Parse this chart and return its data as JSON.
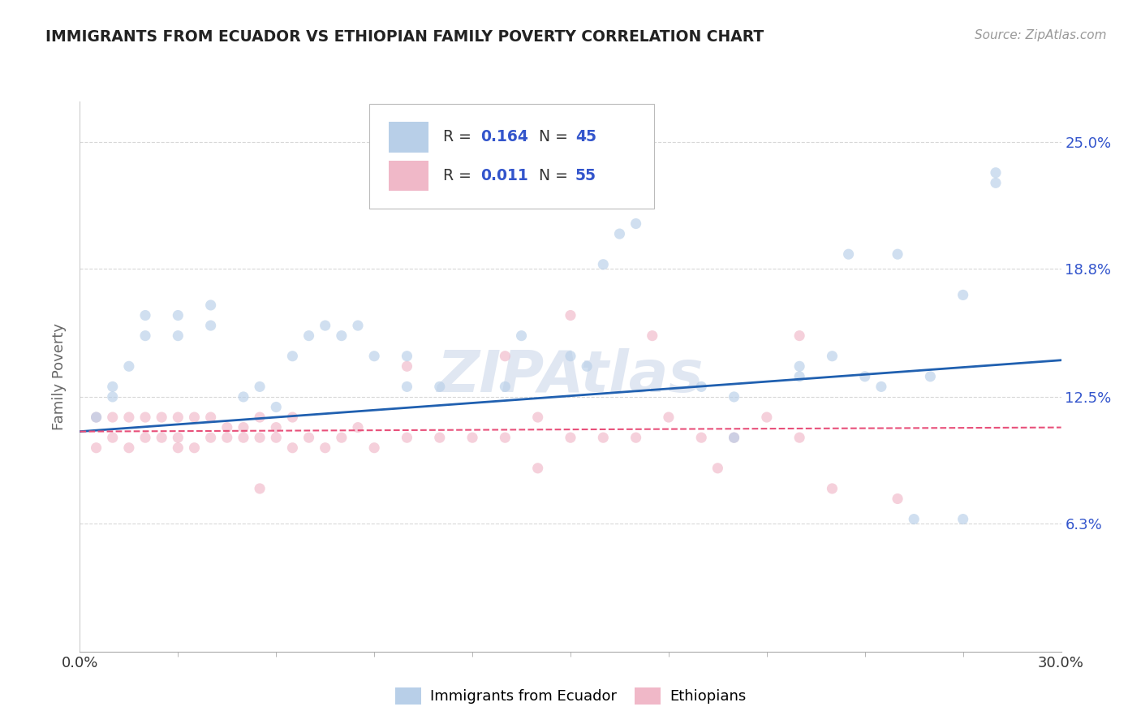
{
  "title": "IMMIGRANTS FROM ECUADOR VS ETHIOPIAN FAMILY POVERTY CORRELATION CHART",
  "source": "Source: ZipAtlas.com",
  "ylabel": "Family Poverty",
  "xmin": 0.0,
  "xmax": 0.3,
  "ymin": 0.0,
  "ymax": 0.27,
  "yticks": [
    0.063,
    0.125,
    0.188,
    0.25
  ],
  "ytick_labels": [
    "6.3%",
    "12.5%",
    "18.8%",
    "25.0%"
  ],
  "xtick_left_label": "0.0%",
  "xtick_right_label": "30.0%",
  "legend_label1": "Immigrants from Ecuador",
  "legend_label2": "Ethiopians",
  "r1": "0.164",
  "n1": "45",
  "r2": "0.011",
  "n2": "55",
  "blue_scatter_x": [
    0.005,
    0.01,
    0.01,
    0.015,
    0.02,
    0.02,
    0.03,
    0.03,
    0.04,
    0.04,
    0.05,
    0.055,
    0.06,
    0.065,
    0.07,
    0.075,
    0.08,
    0.085,
    0.09,
    0.1,
    0.1,
    0.11,
    0.13,
    0.135,
    0.15,
    0.165,
    0.17,
    0.19,
    0.2,
    0.22,
    0.22,
    0.23,
    0.235,
    0.24,
    0.245,
    0.255,
    0.26,
    0.27,
    0.27,
    0.28,
    0.155,
    0.16,
    0.2,
    0.25,
    0.28
  ],
  "blue_scatter_y": [
    0.115,
    0.13,
    0.125,
    0.14,
    0.155,
    0.165,
    0.165,
    0.155,
    0.17,
    0.16,
    0.125,
    0.13,
    0.12,
    0.145,
    0.155,
    0.16,
    0.155,
    0.16,
    0.145,
    0.13,
    0.145,
    0.13,
    0.13,
    0.155,
    0.145,
    0.205,
    0.21,
    0.13,
    0.125,
    0.135,
    0.14,
    0.145,
    0.195,
    0.135,
    0.13,
    0.065,
    0.135,
    0.175,
    0.065,
    0.23,
    0.14,
    0.19,
    0.105,
    0.195,
    0.235
  ],
  "pink_scatter_x": [
    0.005,
    0.005,
    0.01,
    0.01,
    0.015,
    0.015,
    0.02,
    0.02,
    0.025,
    0.025,
    0.03,
    0.03,
    0.03,
    0.035,
    0.035,
    0.04,
    0.04,
    0.045,
    0.045,
    0.05,
    0.05,
    0.055,
    0.055,
    0.06,
    0.06,
    0.065,
    0.065,
    0.07,
    0.075,
    0.08,
    0.085,
    0.09,
    0.1,
    0.11,
    0.12,
    0.13,
    0.14,
    0.15,
    0.16,
    0.17,
    0.18,
    0.19,
    0.2,
    0.21,
    0.22,
    0.13,
    0.175,
    0.23,
    0.14,
    0.25,
    0.1,
    0.055,
    0.15,
    0.195,
    0.22
  ],
  "pink_scatter_y": [
    0.1,
    0.115,
    0.105,
    0.115,
    0.1,
    0.115,
    0.105,
    0.115,
    0.105,
    0.115,
    0.1,
    0.105,
    0.115,
    0.1,
    0.115,
    0.105,
    0.115,
    0.105,
    0.11,
    0.105,
    0.11,
    0.105,
    0.115,
    0.105,
    0.11,
    0.1,
    0.115,
    0.105,
    0.1,
    0.105,
    0.11,
    0.1,
    0.105,
    0.105,
    0.105,
    0.105,
    0.115,
    0.105,
    0.105,
    0.105,
    0.115,
    0.105,
    0.105,
    0.115,
    0.105,
    0.145,
    0.155,
    0.08,
    0.09,
    0.075,
    0.14,
    0.08,
    0.165,
    0.09,
    0.155
  ],
  "blue_line_x": [
    0.0,
    0.3
  ],
  "blue_line_y": [
    0.108,
    0.143
  ],
  "pink_line_x": [
    0.0,
    0.3
  ],
  "pink_line_y": [
    0.108,
    0.11
  ],
  "scatter_alpha": 0.65,
  "scatter_size": 90,
  "line_blue_color": "#2060b0",
  "line_pink_color": "#e8507a",
  "dot_blue_color": "#b8cfe8",
  "dot_pink_color": "#f0b8c8",
  "grid_color": "#d8d8d8",
  "title_color": "#222222",
  "axis_label_color": "#666666",
  "right_tick_color": "#3355cc",
  "watermark_color": "#c8d4e8"
}
